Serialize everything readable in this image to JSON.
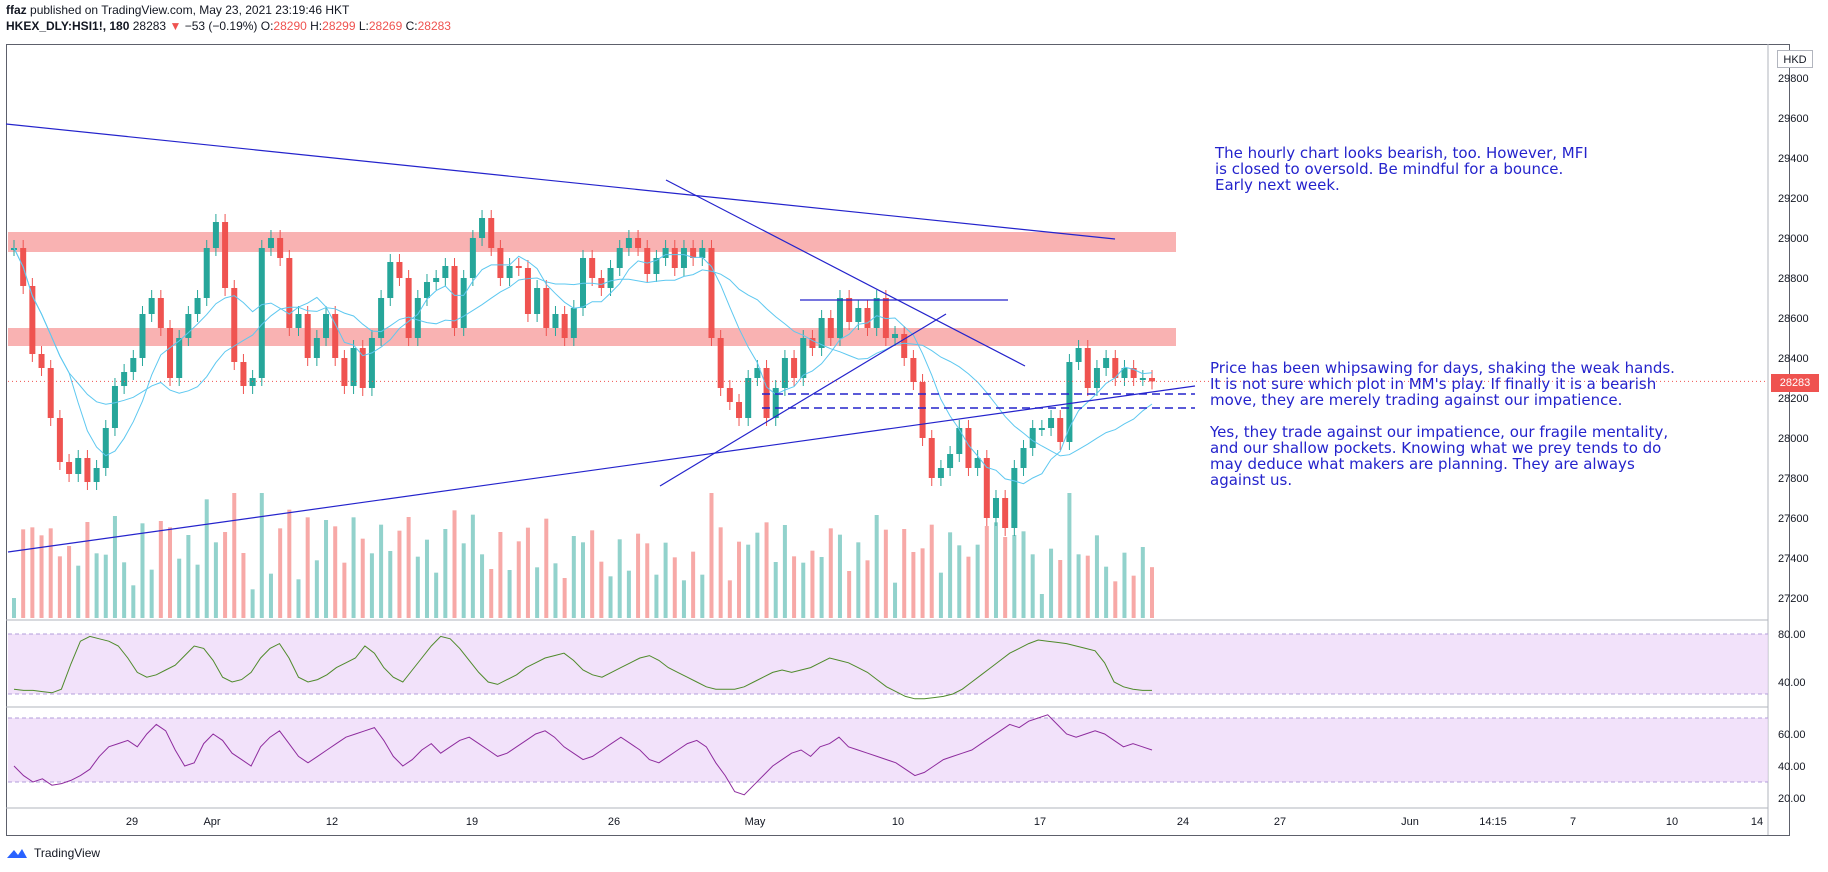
{
  "header": {
    "author": "ffaz",
    "published": "published on TradingView.com, May 23, 2021 23:19:46 HKT",
    "symbol": "HKEX_DLY:HSI1!, 180",
    "last": "28283",
    "change_arrow": "▼",
    "change": "−53 (−0.19%)",
    "o_label": "O:",
    "o_val": "28290",
    "h_label": "H:",
    "h_val": "28299",
    "l_label": "L:",
    "l_val": "28269",
    "c_label": "C:",
    "c_val": "28283"
  },
  "currency": "HKD",
  "last_price_tag": "28283",
  "annotations": {
    "note1": "The hourly chart looks bearish, too. However, MFI is closed to oversold. Be mindful for a bounce. Early next week.",
    "note2": "Price has been whipsawing for days, shaking the weak hands. It is not sure which plot in MM's play. If finally it is a bearish move, they are merely trading against our impatience.",
    "note3": "Yes, they trade against our impatience, our fragile mentality, and our shallow pockets. Knowing what we prey tends to do may deduce what makers are planning. They are always against us."
  },
  "footer": {
    "brand": "TradingView"
  },
  "colors": {
    "up": "#26a69a",
    "down": "#ef5350",
    "trend": "#2423cc",
    "zone": "#f8a5a5",
    "ma": "#5ec8f0",
    "osc_bg": "#ecd5f8",
    "osc1": "#4f8a2b",
    "osc2": "#8e2c9e"
  },
  "chart_data": [
    {
      "type": "candlestick",
      "title": "HKEX_DLY:HSI1!, 180",
      "ylabel": "HKD",
      "ylim": [
        27100,
        29950
      ],
      "y_ticks": [
        "29800",
        "29600",
        "29400",
        "29200",
        "29000",
        "28800",
        "28600",
        "28400",
        "28200",
        "28000",
        "27800",
        "27600",
        "27400",
        "27200"
      ],
      "x_ticks": [
        "29",
        "Apr",
        "12",
        "19",
        "26",
        "May",
        "10",
        "17",
        "24",
        "27",
        "Jun",
        "14:15",
        "7",
        "10",
        "14"
      ],
      "candles": [
        28950,
        28760,
        28420,
        28350,
        28100,
        27880,
        27820,
        27900,
        27780,
        27850,
        28050,
        28260,
        28330,
        28400,
        28620,
        28700,
        28550,
        28300,
        28500,
        28620,
        28700,
        28950,
        29080,
        28750,
        28380,
        28260,
        28300,
        28950,
        29000,
        28900,
        28550,
        28620,
        28400,
        28500,
        28620,
        28400,
        28260,
        28450,
        28250,
        28500,
        28700,
        28880,
        28800,
        28500,
        28700,
        28780,
        28800,
        28860,
        28550,
        28800,
        29000,
        29100,
        28950,
        28800,
        28860,
        28850,
        28620,
        28750,
        28550,
        28620,
        28500,
        28650,
        28900,
        28800,
        28750,
        28850,
        28950,
        29000,
        28950,
        28820,
        28900,
        28950,
        28850,
        28950,
        28900,
        28950,
        28500,
        28250,
        28180,
        28100,
        28300,
        28350,
        28100,
        28250,
        28400,
        28300,
        28500,
        28450,
        28600,
        28500,
        28700,
        28580,
        28650,
        28550,
        28700,
        28500,
        28520,
        28400,
        28280,
        28000,
        27800,
        27850,
        27920,
        28050,
        27850,
        27900,
        27600,
        27700,
        27550,
        27850,
        27950,
        28050,
        28050,
        28100,
        27980,
        28380,
        28450,
        28250,
        28350,
        28400,
        28300,
        28350,
        28300,
        28300,
        28283
      ],
      "last": 28283,
      "resistance_zones": [
        [
          28930,
          29030
        ],
        [
          28460,
          28550
        ]
      ],
      "support_dashed": [
        28220,
        28150
      ]
    },
    {
      "type": "line",
      "title": "Oscillator 1",
      "ylim": [
        20,
        90
      ],
      "y_ticks": [
        "80.00",
        "40.00"
      ],
      "band": [
        30,
        80
      ],
      "values": [
        34,
        33,
        33,
        32,
        31,
        34,
        55,
        74,
        78,
        76,
        74,
        70,
        60,
        48,
        44,
        46,
        50,
        54,
        62,
        70,
        68,
        58,
        44,
        40,
        42,
        48,
        60,
        68,
        72,
        60,
        44,
        40,
        42,
        46,
        52,
        56,
        60,
        70,
        64,
        52,
        44,
        40,
        50,
        60,
        70,
        78,
        76,
        68,
        58,
        48,
        40,
        38,
        42,
        46,
        52,
        56,
        60,
        62,
        64,
        58,
        50,
        46,
        44,
        48,
        52,
        56,
        60,
        62,
        58,
        52,
        48,
        44,
        40,
        36,
        34,
        34,
        34,
        36,
        40,
        44,
        48,
        50,
        48,
        50,
        52,
        56,
        60,
        58,
        56,
        52,
        48,
        42,
        36,
        32,
        28,
        26,
        26,
        27,
        28,
        30,
        34,
        40,
        46,
        52,
        58,
        64,
        68,
        72,
        75,
        74,
        73,
        72,
        70,
        68,
        66,
        56,
        40,
        36,
        34,
        33,
        33
      ]
    },
    {
      "type": "line",
      "title": "Oscillator 2",
      "ylim": [
        15,
        75
      ],
      "y_ticks": [
        "60.00",
        "40.00",
        "20.00"
      ],
      "band": [
        30,
        70
      ],
      "values": [
        40,
        34,
        30,
        32,
        28,
        29,
        31,
        34,
        38,
        46,
        52,
        54,
        56,
        52,
        60,
        66,
        62,
        50,
        40,
        42,
        54,
        60,
        56,
        48,
        44,
        40,
        52,
        58,
        62,
        54,
        46,
        42,
        46,
        50,
        54,
        58,
        60,
        62,
        64,
        56,
        46,
        40,
        44,
        50,
        54,
        48,
        52,
        56,
        58,
        54,
        50,
        46,
        48,
        52,
        56,
        60,
        62,
        58,
        52,
        48,
        44,
        46,
        50,
        54,
        58,
        54,
        50,
        44,
        42,
        46,
        50,
        54,
        56,
        52,
        42,
        34,
        24,
        22,
        28,
        34,
        40,
        44,
        48,
        50,
        46,
        52,
        54,
        58,
        52,
        50,
        48,
        46,
        44,
        42,
        38,
        34,
        36,
        40,
        44,
        46,
        48,
        50,
        54,
        58,
        62,
        66,
        64,
        68,
        70,
        72,
        66,
        60,
        58,
        60,
        62,
        60,
        56,
        52,
        54,
        52,
        50
      ]
    }
  ]
}
